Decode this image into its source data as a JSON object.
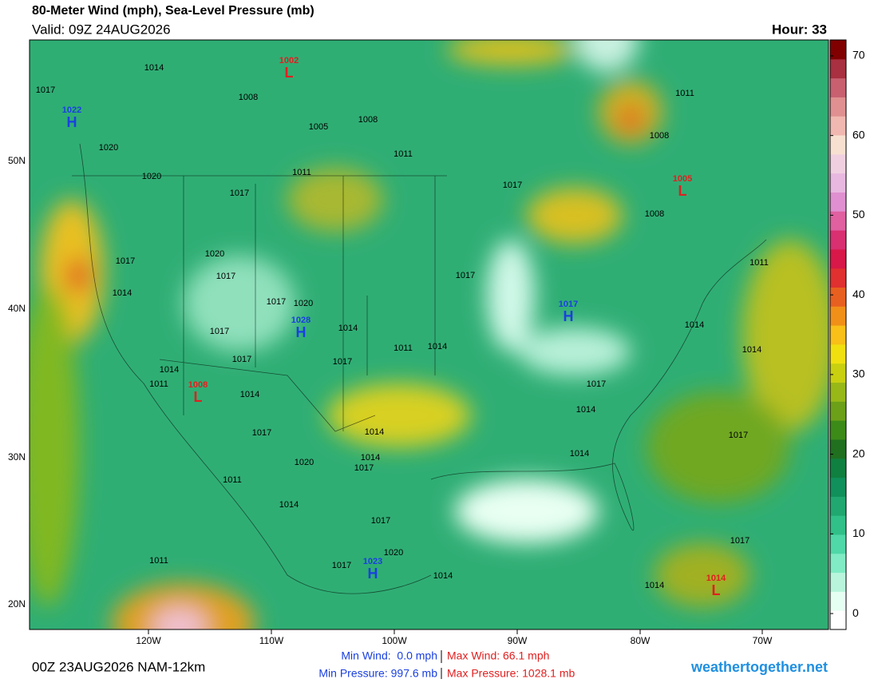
{
  "header": {
    "title": "80-Meter Wind (mph), Sea-Level Pressure (mb)",
    "valid": "Valid: 09Z 24AUG2026",
    "hour": "Hour: 33"
  },
  "axes": {
    "lat_labels": [
      "50N",
      "40N",
      "30N",
      "20N"
    ],
    "lon_labels": [
      "120W",
      "110W",
      "100W",
      "90W",
      "80W",
      "70W"
    ]
  },
  "colorbar": {
    "range": [
      -2,
      72
    ],
    "ticks": [
      0,
      10,
      20,
      30,
      40,
      50,
      60,
      70
    ],
    "colors": [
      "#ffffff",
      "#e6fff3",
      "#b8f5dc",
      "#80ebc4",
      "#50d8a8",
      "#30c088",
      "#20a870",
      "#10905a",
      "#108040",
      "#207020",
      "#3c8a18",
      "#6ca018",
      "#98b818",
      "#c8d010",
      "#f0e010",
      "#f8c018",
      "#f09018",
      "#e86020",
      "#e03030",
      "#d81848",
      "#d83070",
      "#e060a0",
      "#e090d0",
      "#e8b8e0",
      "#f0d0e0",
      "#f8e0d0",
      "#f0b8b0",
      "#e09090",
      "#c86070",
      "#a83040",
      "#800000"
    ]
  },
  "map": {
    "isobar_labels": [
      1014,
      1017,
      1008,
      1005,
      1008,
      1011,
      1020,
      1020,
      1011,
      1017,
      1017,
      1011,
      1008,
      1008,
      1017,
      1020,
      1017,
      1014,
      1017,
      1020,
      1017,
      1011,
      1017,
      1014,
      1011,
      1014,
      1017,
      1017,
      1014,
      1011,
      1014,
      1014,
      1017,
      1014,
      1017,
      1014,
      1017,
      1020,
      1014,
      1017,
      1014,
      1011,
      1014,
      1017,
      1020,
      1017,
      1014,
      1011,
      1017,
      1014,
      1014
    ],
    "centers": [
      {
        "symbol": "H",
        "pressure": 1022
      },
      {
        "symbol": "L",
        "pressure": 1002
      },
      {
        "symbol": "L",
        "pressure": 1005
      },
      {
        "symbol": "H",
        "pressure": 1028
      },
      {
        "symbol": "H",
        "pressure": 1017
      },
      {
        "symbol": "L",
        "pressure": 1008
      },
      {
        "symbol": "H",
        "pressure": 1023
      },
      {
        "symbol": "L",
        "pressure": 1014
      }
    ]
  },
  "footer": {
    "run": "00Z 23AUG2026 NAM-12km",
    "min_wind": "Min Wind:  0.0 mph",
    "max_wind": "Max Wind: 66.1 mph",
    "min_pressure": "Min Pressure: 997.6 mb",
    "max_pressure": "Max Pressure: 1028.1 mb",
    "site": "weathertogether.net"
  }
}
